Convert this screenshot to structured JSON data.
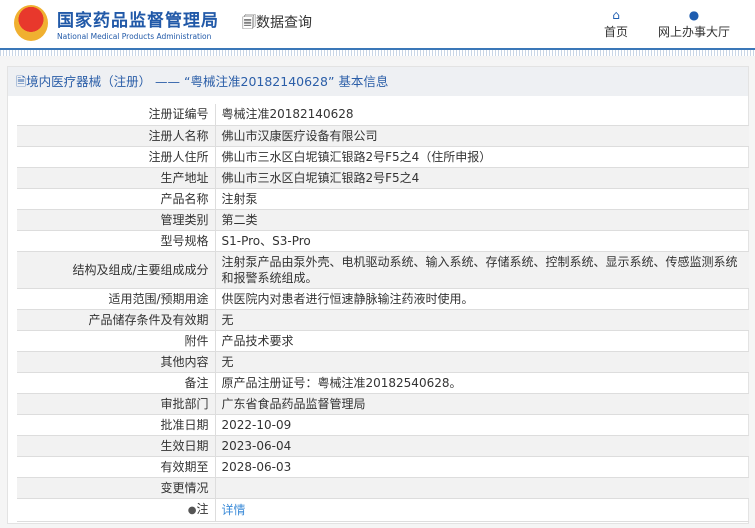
{
  "header": {
    "title_cn": "国家药品监督管理局",
    "title_en": "National Medical Products Administration",
    "query_label": "数据查询",
    "nav": [
      {
        "label": "首页",
        "icon": "home-icon"
      },
      {
        "label": "网上办事大厅",
        "icon": "user-icon"
      }
    ]
  },
  "panel": {
    "title": "境内医疗器械（注册） —— “粤械注准20182140628” 基本信息"
  },
  "rows": [
    {
      "label": "注册证编号",
      "value": "粤械注准20182140628"
    },
    {
      "label": "注册人名称",
      "value": "佛山市汉康医疗设备有限公司"
    },
    {
      "label": "注册人住所",
      "value": "佛山市三水区白坭镇汇银路2号F5之4（住所申报）"
    },
    {
      "label": "生产地址",
      "value": "佛山市三水区白坭镇汇银路2号F5之4"
    },
    {
      "label": "产品名称",
      "value": "注射泵"
    },
    {
      "label": "管理类别",
      "value": "第二类"
    },
    {
      "label": "型号规格",
      "value": "S1-Pro、S3-Pro"
    },
    {
      "label": "结构及组成/主要组成成分",
      "value": "注射泵产品由泵外壳、电机驱动系统、输入系统、存储系统、控制系统、显示系统、传感监测系统和报警系统组成。"
    },
    {
      "label": "适用范围/预期用途",
      "value": "供医院内对患者进行恒速静脉输注药液时使用。"
    },
    {
      "label": "产品储存条件及有效期",
      "value": "无"
    },
    {
      "label": "附件",
      "value": "产品技术要求"
    },
    {
      "label": "其他内容",
      "value": "无"
    },
    {
      "label": "备注",
      "value": "原产品注册证号：粤械注准20182540628。"
    },
    {
      "label": "审批部门",
      "value": "广东省食品药品监督管理局"
    },
    {
      "label": "批准日期",
      "value": "2022-10-09"
    },
    {
      "label": "生效日期",
      "value": "2023-06-04"
    },
    {
      "label": "有效期至",
      "value": "2028-06-03"
    },
    {
      "label": "变更情况",
      "value": ""
    },
    {
      "label": "注",
      "value": "详情"
    }
  ]
}
